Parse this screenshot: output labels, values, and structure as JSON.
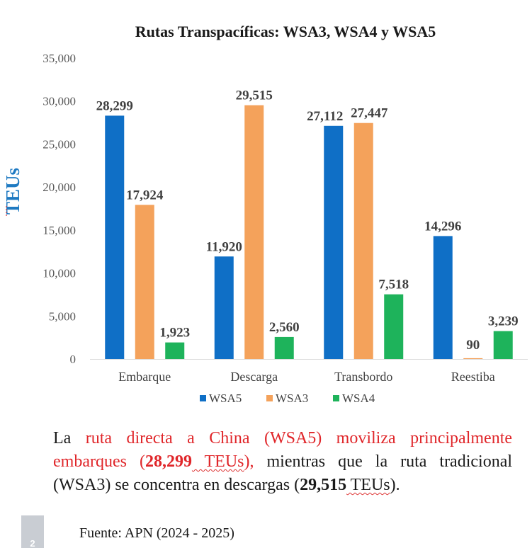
{
  "chart_data": {
    "type": "bar",
    "title": "Rutas Transpacíficas: WSA3, WSA4 y WSA5",
    "ylabel": "TEUs",
    "xlabel": "",
    "ylim": [
      0,
      35000
    ],
    "yticks": [
      0,
      5000,
      10000,
      15000,
      20000,
      25000,
      30000,
      35000
    ],
    "ytick_labels": [
      "0",
      "5,000",
      "10,000",
      "15,000",
      "20,000",
      "25,000",
      "30,000",
      "35,000"
    ],
    "categories": [
      "Embarque",
      "Descarga",
      "Transbordo",
      "Reestiba"
    ],
    "grid": false,
    "legend_position": "bottom",
    "series": [
      {
        "name": "WSA5",
        "color": "#0f6fc6",
        "values": [
          28299,
          11920,
          27112,
          14296
        ],
        "labels": [
          "28,299",
          "11,920",
          "27,112",
          "14,296"
        ]
      },
      {
        "name": "WSA3",
        "color": "#f4a25b",
        "values": [
          17924,
          29515,
          27447,
          90
        ],
        "labels": [
          "17,924",
          "29,515",
          "27,447",
          "90"
        ]
      },
      {
        "name": "WSA4",
        "color": "#1eb35b",
        "values": [
          1923,
          2560,
          7518,
          3239
        ],
        "labels": [
          "1,923",
          "2,560",
          "7,518",
          "3,239"
        ]
      }
    ]
  },
  "caption": {
    "p1": "La ",
    "p2": "ruta directa a China (WSA5) moviliza principalmente embarques (",
    "p3": "28,299",
    "p4": " TEUs",
    "p5": "),",
    "p6": " mientras que la ruta tradicional (WSA3) se concentra en descargas (",
    "p7": "29,515",
    "p8": " TEUs",
    "p9": ")."
  },
  "footer": {
    "slide_number": "2",
    "source": "Fuente: APN (2024 - 2025)"
  }
}
